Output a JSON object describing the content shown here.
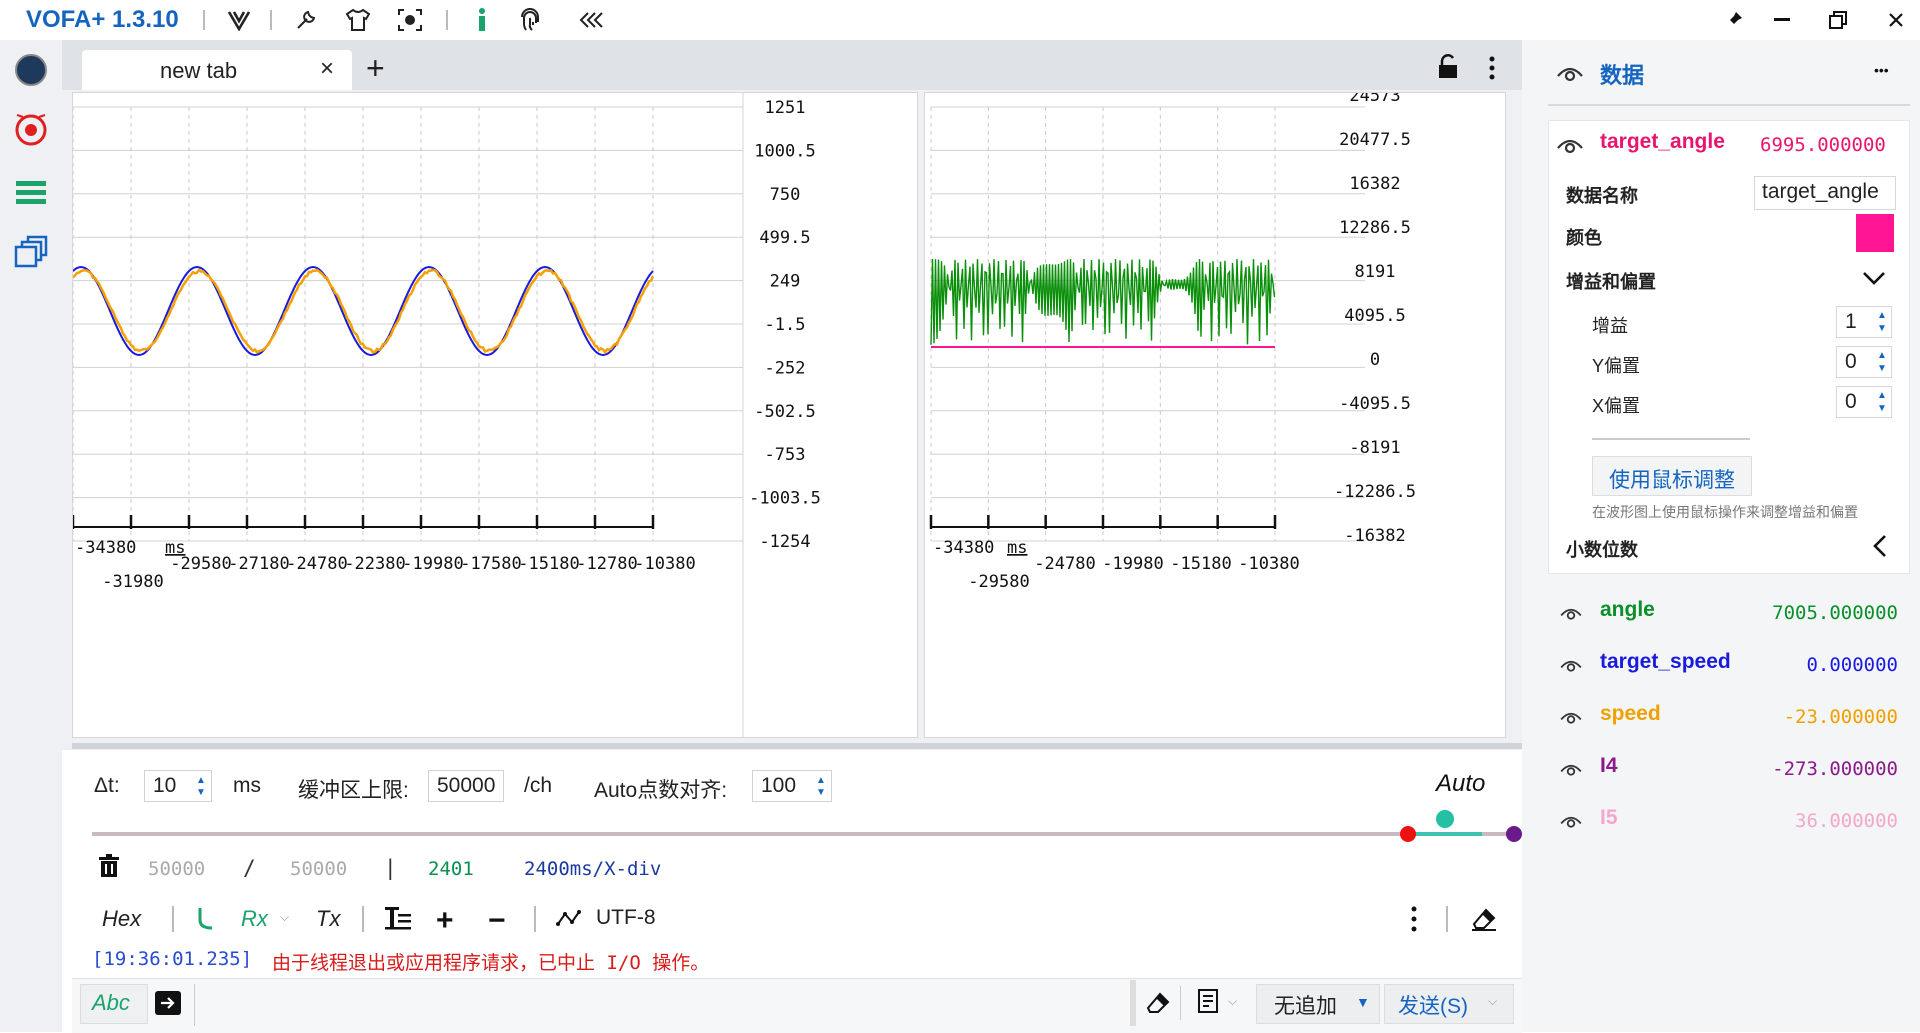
{
  "app": {
    "title": "VOFA+ 1.3.10"
  },
  "tabs": [
    {
      "label": "new tab",
      "close": "×"
    }
  ],
  "tab_add": "+",
  "plots": [
    {
      "y_ticks": [
        "1251",
        "1000.5",
        "750",
        "499.5",
        "249",
        "-1.5",
        "-252",
        "-502.5",
        "-753",
        "-1003.5",
        "-1254"
      ],
      "x_ticks_row1": [
        "-34380",
        "ms",
        "-29580",
        "-27180",
        "-24780",
        "-22380",
        "-19980",
        "-17580",
        "-15180",
        "-12780",
        "-10380"
      ],
      "x_ticks_row2": [
        "-31980"
      ]
    },
    {
      "y_ticks": [
        "24573",
        "20477.5",
        "16382",
        "12286.5",
        "8191",
        "4095.5",
        "0",
        "-4095.5",
        "-8191",
        "-12286.5",
        "-16382"
      ],
      "x_ticks_row1": [
        "-34380",
        "ms",
        "-24780",
        "-19980",
        "-15180",
        "-10380"
      ],
      "x_ticks_row2": [
        "-29580"
      ]
    }
  ],
  "controls": {
    "dt_label": "Δt:",
    "dt_value": "10",
    "dt_unit": "ms",
    "buffer_label": "缓冲区上限:",
    "buffer_value": "50000",
    "buffer_unit": "/ch",
    "auto_align_label": "Auto点数对齐:",
    "auto_align_value": "100",
    "auto_label": "Auto"
  },
  "status": {
    "count_a": "50000",
    "slash": "/",
    "count_b": "50000",
    "pipe": "|",
    "points": "2401",
    "xdiv": "2400ms/X-div"
  },
  "terminal_toolbar": {
    "hex": "Hex",
    "rx": "Rx",
    "tx": "Tx",
    "encoding": "UTF-8"
  },
  "log": {
    "timestamp": "[19:36:01.235]",
    "message": "由于线程退出或应用程序请求，已中止 I/O 操作。"
  },
  "send_bar": {
    "abc": "Abc",
    "append_mode": "无追加",
    "send_button": "发送(S)"
  },
  "right_panel": {
    "title": "数据",
    "more": "•••",
    "selected": {
      "name": "target_angle",
      "value": "6995.000000",
      "name_label": "数据名称",
      "name_field": "target_angle",
      "color_label": "颜色",
      "color": "#ff1493",
      "gain_offset_label": "增益和偏置",
      "gain_label": "增益",
      "gain_value": "1",
      "y_offset_label": "Y偏置",
      "y_offset_value": "0",
      "x_offset_label": "X偏置",
      "x_offset_value": "0",
      "mouse_adjust_button": "使用鼠标调整",
      "mouse_adjust_hint": "在波形图上使用鼠标操作来调整增益和偏置",
      "decimals_label": "小数位数"
    },
    "channels": [
      {
        "name": "angle",
        "value": "7005.000000",
        "color": "#0a8f2a"
      },
      {
        "name": "target_speed",
        "value": "0.000000",
        "color": "#1a1adf"
      },
      {
        "name": "speed",
        "value": "-23.000000",
        "color": "#f0a000"
      },
      {
        "name": "I4",
        "value": "-273.000000",
        "color": "#8b1a8b"
      },
      {
        "name": "I5",
        "value": "36.000000",
        "color": "#f4a7c8"
      }
    ]
  },
  "colors": {
    "accent": "#1565c0",
    "plot_blue": "#1a1adf",
    "plot_orange": "#f5a000",
    "plot_green": "#0a8f0a",
    "plot_pink": "#ff1493"
  }
}
